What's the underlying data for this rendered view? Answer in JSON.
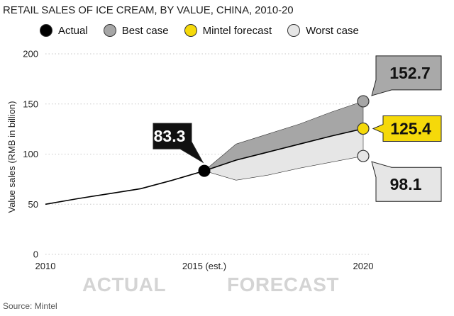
{
  "chart_data": {
    "type": "line",
    "title": "RETAIL SALES OF ICE CREAM, BY VALUE, CHINA, 2010-20",
    "ylabel": "Value sales (RMB in billion)",
    "xlabel": "",
    "ylim": [
      0,
      200
    ],
    "yticks": [
      0,
      50,
      100,
      150,
      200
    ],
    "xlim": [
      2010,
      2020
    ],
    "xticks": [
      {
        "x": 2010,
        "label": "2010"
      },
      {
        "x": 2015,
        "label": "2015 (est.)"
      },
      {
        "x": 2020,
        "label": "2020"
      }
    ],
    "series": [
      {
        "name": "Actual",
        "color": "#000000",
        "points": [
          [
            2010,
            50
          ],
          [
            2011,
            55.5
          ],
          [
            2012,
            60.5
          ],
          [
            2013,
            65.5
          ],
          [
            2014,
            74
          ],
          [
            2015,
            83.3
          ]
        ]
      },
      {
        "name": "Best case",
        "color": "#a6a6a6",
        "points": [
          [
            2015,
            83.3
          ],
          [
            2016,
            110
          ],
          [
            2017,
            120
          ],
          [
            2018,
            130
          ],
          [
            2019,
            142
          ],
          [
            2020,
            152.7
          ]
        ]
      },
      {
        "name": "Mintel forecast",
        "color": "#f5d90a",
        "points": [
          [
            2015,
            83.3
          ],
          [
            2016,
            94
          ],
          [
            2017,
            102
          ],
          [
            2018,
            110
          ],
          [
            2019,
            118
          ],
          [
            2020,
            125.4
          ]
        ]
      },
      {
        "name": "Worst case",
        "color": "#e6e6e6",
        "points": [
          [
            2015,
            83.3
          ],
          [
            2016,
            74
          ],
          [
            2017,
            79
          ],
          [
            2018,
            86
          ],
          [
            2019,
            92
          ],
          [
            2020,
            98.1
          ]
        ]
      }
    ],
    "callouts": [
      {
        "series": "Actual",
        "label": "83.3",
        "value": 83.3
      },
      {
        "series": "Best case",
        "label": "152.7",
        "value": 152.7
      },
      {
        "series": "Mintel forecast",
        "label": "125.4",
        "value": 125.4
      },
      {
        "series": "Worst case",
        "label": "98.1",
        "value": 98.1
      }
    ],
    "phases": {
      "actual": "ACTUAL",
      "forecast": "FORECAST"
    },
    "grid": true
  },
  "legend": [
    {
      "label": "Actual",
      "color": "#000000"
    },
    {
      "label": "Best case",
      "color": "#a6a6a6"
    },
    {
      "label": "Mintel forecast",
      "color": "#f5d90a"
    },
    {
      "label": "Worst case",
      "color": "#e6e6e6"
    }
  ],
  "source": "Source: Mintel"
}
